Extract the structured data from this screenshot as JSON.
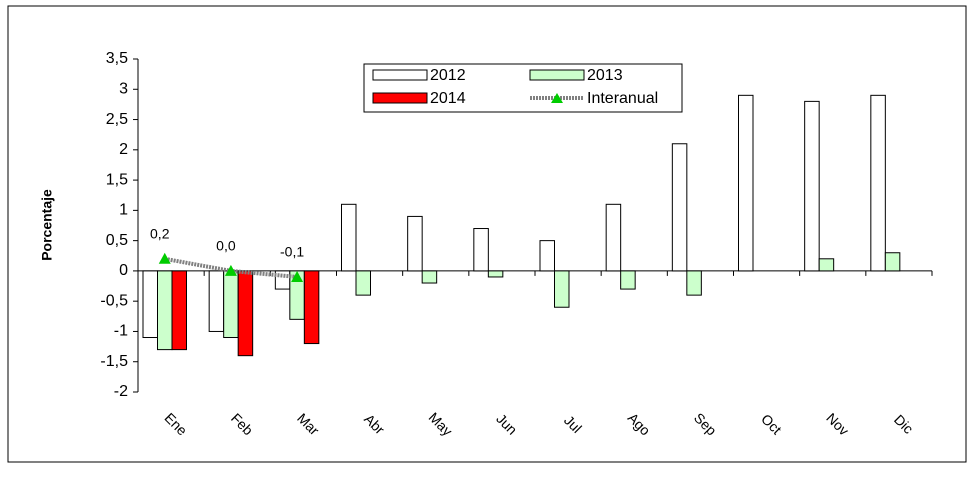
{
  "chart_data": {
    "type": "bar",
    "y_label": "Porcentaje",
    "categories": [
      "Ene",
      "Feb",
      "Mar",
      "Abr",
      "May",
      "Jun",
      "Jul",
      "Ago",
      "Sep",
      "Oct",
      "Nov",
      "Dic"
    ],
    "series": [
      {
        "name": "2012",
        "color": "#ffffff",
        "values": [
          -1.1,
          -1.0,
          -0.3,
          1.1,
          0.9,
          0.7,
          0.5,
          1.1,
          2.1,
          2.9,
          2.8,
          2.9
        ]
      },
      {
        "name": "2013",
        "color": "#ccffcc",
        "values": [
          -1.3,
          -1.1,
          -0.8,
          -0.4,
          -0.2,
          -0.1,
          -0.6,
          -0.3,
          -0.4,
          0,
          0.2,
          0.3
        ]
      },
      {
        "name": "2014",
        "color": "#ff0000",
        "values": [
          -1.3,
          -1.4,
          -1.2,
          null,
          null,
          null,
          null,
          null,
          null,
          null,
          null,
          null
        ]
      },
      {
        "name": "Interanual",
        "type": "line",
        "color": "#808080",
        "marker_color": "#00cc00",
        "values": [
          0.2,
          0.0,
          -0.1,
          null,
          null,
          null,
          null,
          null,
          null,
          null,
          null,
          null
        ],
        "value_labels": [
          "0,2",
          "0,0",
          "-0,1",
          null,
          null,
          null,
          null,
          null,
          null,
          null,
          null,
          null
        ]
      }
    ],
    "ylim": [
      -2,
      3.5
    ],
    "yticks": [
      {
        "value": -2,
        "label": "-2"
      },
      {
        "value": -1.5,
        "label": "-1,5"
      },
      {
        "value": -1,
        "label": "-1"
      },
      {
        "value": -0.5,
        "label": "-0,5"
      },
      0,
      {
        "value": 0.5,
        "label": "0,5"
      },
      1,
      {
        "value": 1.5,
        "label": "1,5"
      },
      2,
      {
        "value": 2.5,
        "label": "2,5"
      },
      3,
      {
        "value": 3.5,
        "label": "3,5"
      }
    ],
    "grid": false,
    "legend": "top"
  }
}
